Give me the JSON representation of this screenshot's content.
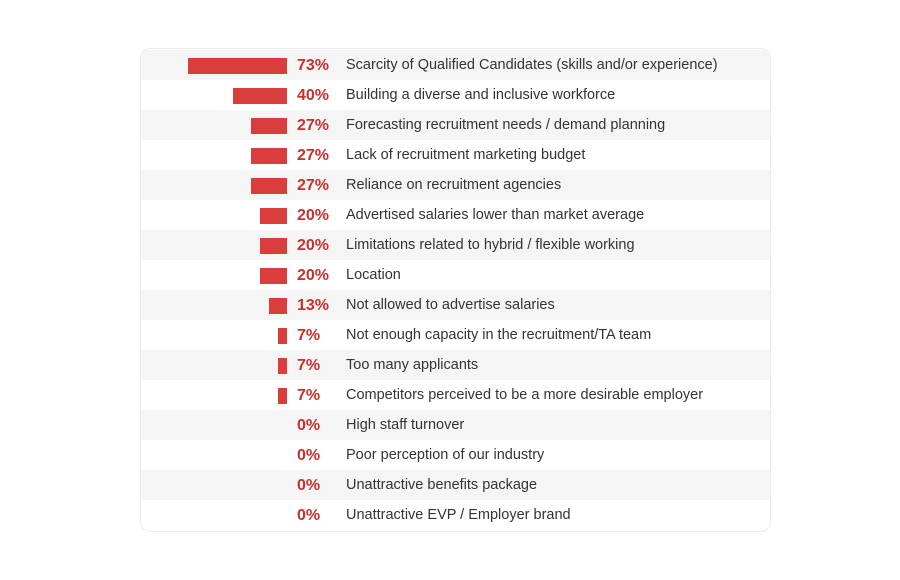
{
  "chart_data": {
    "type": "bar",
    "orientation": "horizontal",
    "xlim": [
      0,
      100
    ],
    "value_suffix": "%",
    "categories": [
      "Scarcity of Qualified Candidates (skills and/or experience)",
      "Building a diverse and inclusive workforce",
      "Forecasting recruitment needs / demand planning",
      "Lack of recruitment marketing budget",
      "Reliance on recruitment agencies",
      "Advertised salaries lower than market average",
      "Limitations related to hybrid / flexible working",
      "Location",
      "Not allowed to advertise salaries",
      "Not enough capacity in the recruitment/TA team",
      "Too many applicants",
      "Competitors perceived to be a more desirable employer",
      "High staff turnover",
      "Poor perception of our industry",
      "Unattractive benefits package",
      "Unattractive EVP / Employer brand"
    ],
    "values": [
      73,
      40,
      27,
      27,
      27,
      20,
      20,
      20,
      13,
      7,
      7,
      7,
      0,
      0,
      0,
      0
    ],
    "value_labels": [
      "73%",
      "40%",
      "27%",
      "27%",
      "27%",
      "20%",
      "20%",
      "20%",
      "13%",
      "7%",
      "7%",
      "7%",
      "0%",
      "0%",
      "0%",
      "0%"
    ],
    "grid": false,
    "legend": "none",
    "colors": {
      "bar": "#d93e3c",
      "value_text": "#c9302c",
      "label_text": "#333333",
      "row_shade": "#f5f5f5"
    }
  }
}
